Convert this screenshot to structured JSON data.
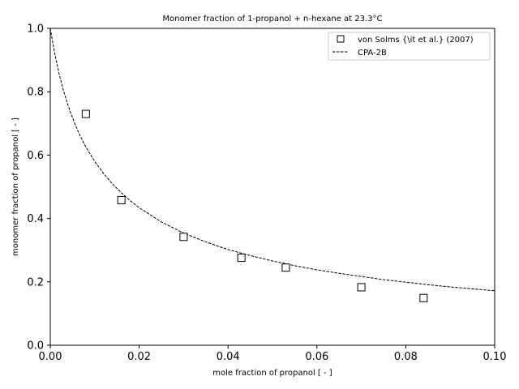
{
  "chart_data": {
    "type": "scatter",
    "title": "Monomer fraction of 1-propanol + n-hexane at 23.3°C",
    "xlabel": "mole fraction of propanol [ - ]",
    "ylabel": "monomer fraction of propanol [ - ]",
    "xlim": [
      0.0,
      0.1
    ],
    "ylim": [
      0.0,
      1.0
    ],
    "xticks": [
      "0.00",
      "0.02",
      "0.04",
      "0.06",
      "0.08",
      "0.10"
    ],
    "yticks": [
      "0.0",
      "0.2",
      "0.4",
      "0.6",
      "0.8",
      "1.0"
    ],
    "grid": false,
    "legend_position": "top-right",
    "series": [
      {
        "name": "von Solms {\\it et al.} (2007)",
        "style": "open-square-markers",
        "color": "#000000",
        "x": [
          0.008,
          0.016,
          0.03,
          0.043,
          0.053,
          0.07,
          0.084
        ],
        "y": [
          0.73,
          0.458,
          0.342,
          0.276,
          0.245,
          0.183,
          0.149
        ]
      },
      {
        "name": "CPA-2B",
        "style": "dashed-line",
        "color": "#000000",
        "x": [
          0.0,
          0.001,
          0.002,
          0.003,
          0.004,
          0.005,
          0.006,
          0.007,
          0.008,
          0.01,
          0.012,
          0.014,
          0.016,
          0.018,
          0.02,
          0.025,
          0.03,
          0.035,
          0.04,
          0.045,
          0.05,
          0.055,
          0.06,
          0.065,
          0.07,
          0.075,
          0.08,
          0.085,
          0.09,
          0.095,
          0.1
        ],
        "y": [
          1.0,
          0.92,
          0.856,
          0.802,
          0.757,
          0.718,
          0.683,
          0.653,
          0.626,
          0.58,
          0.542,
          0.509,
          0.481,
          0.456,
          0.434,
          0.389,
          0.354,
          0.326,
          0.302,
          0.283,
          0.266,
          0.251,
          0.238,
          0.227,
          0.217,
          0.207,
          0.199,
          0.191,
          0.184,
          0.178,
          0.172
        ]
      }
    ]
  }
}
